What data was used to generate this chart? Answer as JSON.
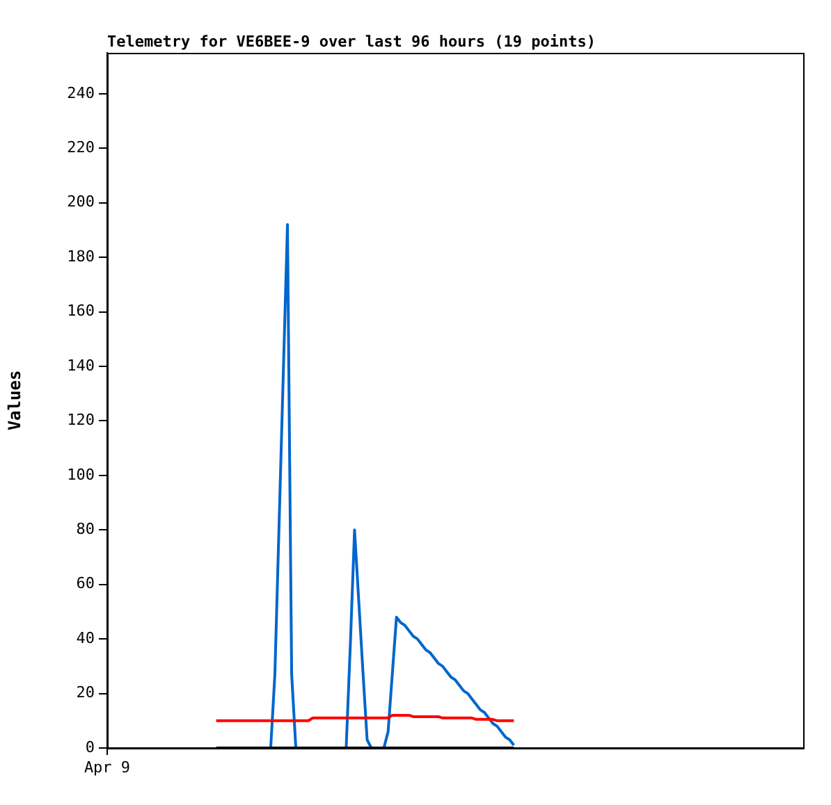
{
  "chart_data": {
    "type": "line",
    "title": "Telemetry for VE6BEE-9 over last 96 hours (19 points)",
    "ylabel": "Values",
    "categories": [
      "Apr 9",
      null,
      null,
      null,
      null,
      null,
      null,
      null,
      null,
      null,
      null,
      null,
      null,
      null,
      null,
      null,
      null,
      null,
      null,
      null,
      null,
      null,
      null,
      null,
      null,
      null,
      null,
      null,
      null,
      null,
      null,
      null,
      null,
      null,
      null,
      null,
      null,
      null,
      null,
      null,
      null,
      null,
      null,
      null,
      null,
      null,
      null,
      null,
      null,
      null,
      null,
      null,
      null,
      null,
      null,
      null,
      null,
      null,
      null,
      null,
      null,
      null,
      null,
      null,
      null,
      null,
      null,
      null,
      null,
      null,
      null,
      null,
      null,
      null,
      null,
      null,
      null,
      null,
      null,
      null,
      null,
      null,
      null,
      null,
      null,
      null,
      null,
      null,
      null,
      null,
      null,
      null,
      null,
      null,
      null,
      null,
      null,
      null,
      null,
      null,
      null,
      null,
      null,
      null,
      null,
      null,
      null,
      null,
      null,
      null,
      null,
      null,
      null,
      null,
      null,
      null,
      null,
      null,
      null,
      null,
      null,
      null,
      null,
      null,
      null,
      null,
      null,
      null,
      null,
      null,
      null,
      null,
      null,
      null,
      null,
      null,
      null,
      null,
      null,
      null,
      null,
      null,
      null,
      null,
      null,
      null,
      null,
      null,
      null,
      null,
      null,
      null,
      null,
      null,
      null,
      null,
      null,
      null,
      null,
      null,
      null,
      null,
      null,
      null,
      null,
      null,
      null
    ],
    "ylim": [
      0,
      255
    ],
    "yticks": [
      0,
      20,
      40,
      60,
      80,
      100,
      120,
      140,
      160,
      180,
      200,
      220,
      240
    ],
    "grid": false,
    "legend": false,
    "marker": "none",
    "line_style": "solid",
    "series": [
      {
        "color": "#000000",
        "values": [
          null,
          null,
          null,
          null,
          null,
          null,
          null,
          null,
          null,
          null,
          null,
          null,
          null,
          null,
          null,
          null,
          null,
          null,
          null,
          null,
          null,
          null,
          null,
          null,
          null,
          null,
          0,
          0,
          0,
          0,
          0,
          0,
          0,
          0,
          0,
          0,
          0,
          0,
          0,
          0,
          0,
          0,
          0,
          0,
          0,
          0,
          0,
          0,
          0,
          0,
          0,
          0,
          0,
          0,
          0,
          0,
          0,
          0,
          0,
          0,
          0,
          0,
          0,
          0,
          0,
          0,
          0,
          0,
          0,
          0,
          0,
          0,
          0,
          0,
          0,
          0,
          0,
          0,
          0,
          0,
          0,
          0,
          0,
          0,
          0,
          0,
          0,
          0,
          0,
          0,
          0,
          0,
          0,
          0,
          0,
          0,
          0,
          0,
          null,
          null,
          null,
          null,
          null,
          null,
          null,
          null,
          null,
          null,
          null,
          null,
          null,
          null,
          null,
          null,
          null,
          null,
          null,
          null,
          null,
          null,
          null,
          null,
          null,
          null,
          null,
          null,
          null,
          null,
          null,
          null,
          null,
          null,
          null,
          null,
          null,
          null,
          null,
          null,
          null,
          null,
          null,
          null,
          null,
          null,
          null,
          null,
          null,
          null,
          null,
          null,
          null,
          null,
          null,
          null,
          null,
          null,
          null,
          null,
          null,
          null,
          null,
          null,
          null,
          null,
          null,
          null,
          null
        ]
      },
      {
        "color": "#ff0000",
        "values": [
          null,
          null,
          null,
          null,
          null,
          null,
          null,
          null,
          null,
          null,
          null,
          null,
          null,
          null,
          null,
          null,
          null,
          null,
          null,
          null,
          null,
          null,
          null,
          null,
          null,
          null,
          10,
          10,
          10,
          10,
          10,
          10,
          10,
          10,
          10,
          10,
          10,
          10,
          10,
          10,
          10,
          10,
          10,
          10,
          10,
          10,
          10,
          10,
          10,
          11,
          11,
          11,
          11,
          11,
          11,
          11,
          11,
          11,
          11,
          11,
          11,
          11,
          11,
          11,
          11,
          11,
          11,
          11,
          12,
          12,
          12,
          12,
          12,
          11.5,
          11.5,
          11.5,
          11.5,
          11.5,
          11.5,
          11.5,
          11,
          11,
          11,
          11,
          11,
          11,
          11,
          11,
          10.5,
          10.5,
          10.5,
          10.5,
          10.5,
          10,
          10,
          10,
          10,
          10,
          null,
          null,
          null,
          null,
          null,
          null,
          null,
          null,
          null,
          null,
          null,
          null,
          null,
          null,
          null,
          null,
          null,
          null,
          null,
          null,
          null,
          null,
          null,
          null,
          null,
          null,
          null,
          null,
          null,
          null,
          null,
          null,
          null,
          null,
          null,
          null,
          null,
          null,
          null,
          null,
          null,
          null,
          null,
          null,
          null,
          null,
          null,
          null,
          null,
          null,
          null,
          null,
          null,
          null,
          null,
          null,
          null,
          null,
          null,
          null,
          null,
          null,
          null,
          null,
          null,
          null,
          null,
          null,
          null
        ]
      },
      {
        "color": "#0066cc",
        "values": [
          null,
          null,
          null,
          null,
          null,
          null,
          null,
          null,
          null,
          null,
          null,
          null,
          null,
          null,
          null,
          null,
          null,
          null,
          null,
          null,
          null,
          null,
          null,
          null,
          null,
          null,
          null,
          null,
          null,
          null,
          null,
          null,
          null,
          null,
          null,
          null,
          null,
          null,
          null,
          0,
          27,
          82,
          137,
          192,
          27,
          0,
          null,
          null,
          null,
          null,
          null,
          null,
          null,
          null,
          null,
          null,
          null,
          0,
          38,
          80,
          54,
          28,
          3,
          0,
          null,
          null,
          0,
          6,
          27,
          48,
          46,
          45,
          43,
          41,
          40,
          38,
          36,
          35,
          33,
          31,
          30,
          28,
          26,
          25,
          23,
          21,
          20,
          18,
          16,
          14,
          13,
          11,
          9,
          8,
          6,
          4,
          3,
          1,
          null,
          null,
          null,
          null,
          null,
          null,
          null,
          null,
          null,
          null,
          null,
          null,
          null,
          null,
          null,
          null,
          null,
          null,
          null,
          null,
          null,
          null,
          null,
          null,
          null,
          null,
          null,
          null,
          null,
          null,
          null,
          null,
          null,
          null,
          null,
          null,
          null,
          null,
          null,
          null,
          null,
          null,
          null,
          null,
          null,
          null,
          null,
          null,
          null,
          null,
          null,
          null,
          null,
          null,
          null,
          null,
          null,
          null,
          null,
          null,
          null,
          null,
          null,
          null,
          null,
          null,
          null,
          null,
          null
        ]
      }
    ]
  }
}
